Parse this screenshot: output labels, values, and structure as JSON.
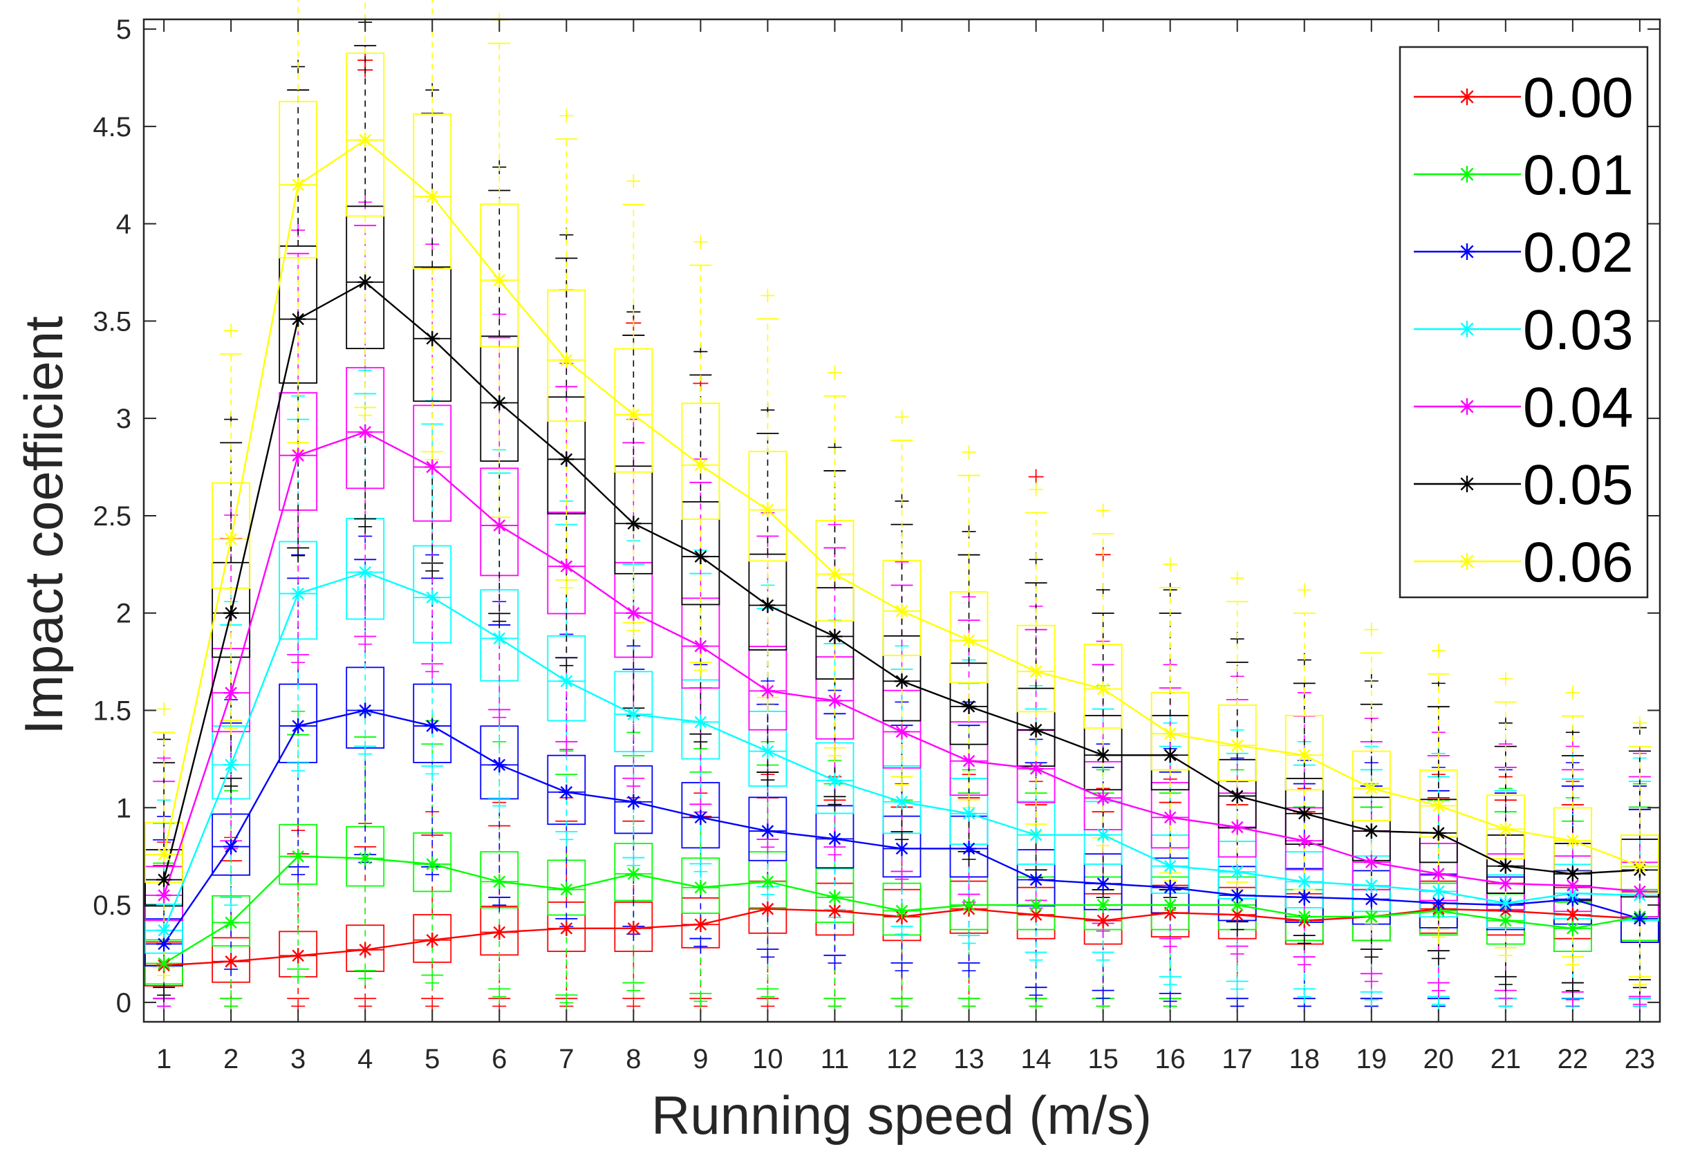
{
  "chart_data": {
    "type": "line",
    "subtype": "boxplot-with-median-lines",
    "title": "",
    "xlabel": "Running speed (m/s)",
    "ylabel": "Impact coefficient",
    "x": [
      1,
      2,
      3,
      4,
      5,
      6,
      7,
      8,
      9,
      10,
      11,
      12,
      13,
      14,
      15,
      16,
      17,
      18,
      19,
      20,
      21,
      22,
      23
    ],
    "xlim": [
      0.7,
      23.3
    ],
    "ylim": [
      -0.1,
      5.05
    ],
    "yticks": [
      0,
      0.5,
      1,
      1.5,
      2,
      2.5,
      3,
      3.5,
      4,
      4.5,
      5
    ],
    "ytick_labels": [
      "0",
      "0.5",
      "1",
      "1.5",
      "2",
      "2.5",
      "3",
      "3.5",
      "4",
      "4.5",
      "5"
    ],
    "legend_position": "top-right",
    "series": [
      {
        "name": "0.00",
        "color": "#ff0000",
        "values": [
          0.19,
          0.21,
          0.24,
          0.27,
          0.32,
          0.36,
          0.38,
          0.38,
          0.4,
          0.48,
          0.47,
          0.44,
          0.48,
          0.45,
          0.42,
          0.46,
          0.45,
          0.42,
          0.44,
          0.48,
          0.47,
          0.45,
          0.43
        ],
        "outliers": [
          4.84,
          4.79,
          2.7,
          2.3,
          3.18,
          3.49,
          3.66
        ]
      },
      {
        "name": "0.01",
        "color": "#00ff00",
        "values": [
          0.2,
          0.41,
          0.75,
          0.74,
          0.71,
          0.62,
          0.58,
          0.66,
          0.59,
          0.62,
          0.54,
          0.47,
          0.5,
          0.5,
          0.5,
          0.5,
          0.5,
          0.44,
          0.44,
          0.47,
          0.42,
          0.38,
          0.44
        ],
        "outliers": []
      },
      {
        "name": "0.02",
        "color": "#0000ff",
        "values": [
          0.3,
          0.8,
          1.42,
          1.5,
          1.42,
          1.22,
          1.08,
          1.03,
          0.95,
          0.88,
          0.84,
          0.79,
          0.79,
          0.63,
          0.61,
          0.59,
          0.55,
          0.54,
          0.53,
          0.51,
          0.5,
          0.53,
          0.43
        ],
        "outliers": []
      },
      {
        "name": "0.03",
        "color": "#00ffff",
        "values": [
          0.37,
          1.22,
          2.1,
          2.21,
          2.08,
          1.87,
          1.65,
          1.48,
          1.44,
          1.29,
          1.14,
          1.03,
          0.97,
          0.86,
          0.86,
          0.7,
          0.67,
          0.62,
          0.6,
          0.57,
          0.51,
          0.56,
          0.55
        ],
        "outliers": []
      },
      {
        "name": "0.04",
        "color": "#ff00ff",
        "values": [
          0.55,
          1.59,
          2.81,
          2.93,
          2.75,
          2.45,
          2.24,
          2.0,
          1.83,
          1.6,
          1.55,
          1.39,
          1.24,
          1.2,
          1.05,
          0.95,
          0.9,
          0.83,
          0.72,
          0.66,
          0.61,
          0.6,
          0.57
        ],
        "outliers": []
      },
      {
        "name": "0.05",
        "color": "#000000",
        "values": [
          0.63,
          2.0,
          3.51,
          3.7,
          3.41,
          3.08,
          2.79,
          2.46,
          2.29,
          2.04,
          1.88,
          1.65,
          1.52,
          1.4,
          1.27,
          1.27,
          1.06,
          0.97,
          0.88,
          0.87,
          0.7,
          0.66,
          0.68
        ],
        "outliers": []
      },
      {
        "name": "0.06",
        "color": "#ffff00",
        "values": [
          0.76,
          2.38,
          4.2,
          4.43,
          4.14,
          3.71,
          3.3,
          3.02,
          2.76,
          2.53,
          2.2,
          2.01,
          1.86,
          1.7,
          1.61,
          1.38,
          1.32,
          1.27,
          1.1,
          1.01,
          0.89,
          0.83,
          0.7
        ],
        "outliers": []
      }
    ]
  }
}
